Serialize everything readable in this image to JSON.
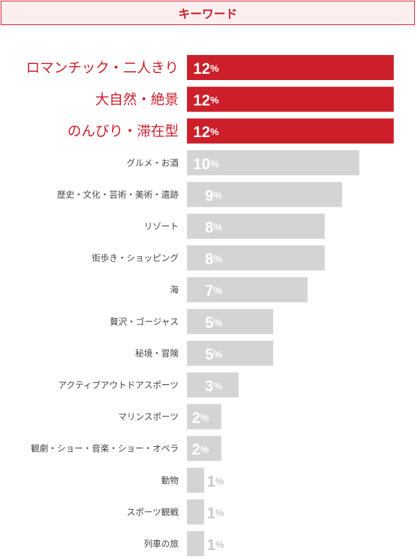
{
  "header": {
    "title": "キーワード"
  },
  "colors": {
    "highlight": "#cc1f2a",
    "normal": "#d4d4d4",
    "label_normal": "#444444",
    "value_inside": "#ffffff",
    "value_outside": "#c8c8c8"
  },
  "chart_data": {
    "type": "bar",
    "orientation": "horizontal",
    "title": "",
    "xlabel": "",
    "ylabel": "",
    "xlim": [
      0,
      13.5
    ],
    "unit": "%",
    "grid": false,
    "legend": "none",
    "categories": [
      "ロマンチック・二人きり",
      "大自然・絶景",
      "のんびり・滞在型",
      "グルメ・お酒",
      "歴史・文化・芸術・美術・遺跡",
      "リゾート",
      "街歩き・ショッピング",
      "海",
      "贅沢・ゴージャス",
      "秘境・冒険",
      "アクティブアウトドアスポーツ",
      "マリンスポーツ",
      "観劇・ショー・音楽・ショー・オペラ",
      "動物",
      "スポーツ観戦",
      "列車の旅"
    ],
    "values": [
      12,
      12,
      12,
      10,
      9,
      8,
      8,
      7,
      5,
      5,
      3,
      2,
      2,
      1,
      1,
      1
    ],
    "highlighted": [
      true,
      true,
      true,
      false,
      false,
      false,
      false,
      false,
      false,
      false,
      false,
      false,
      false,
      false,
      false,
      false
    ]
  }
}
